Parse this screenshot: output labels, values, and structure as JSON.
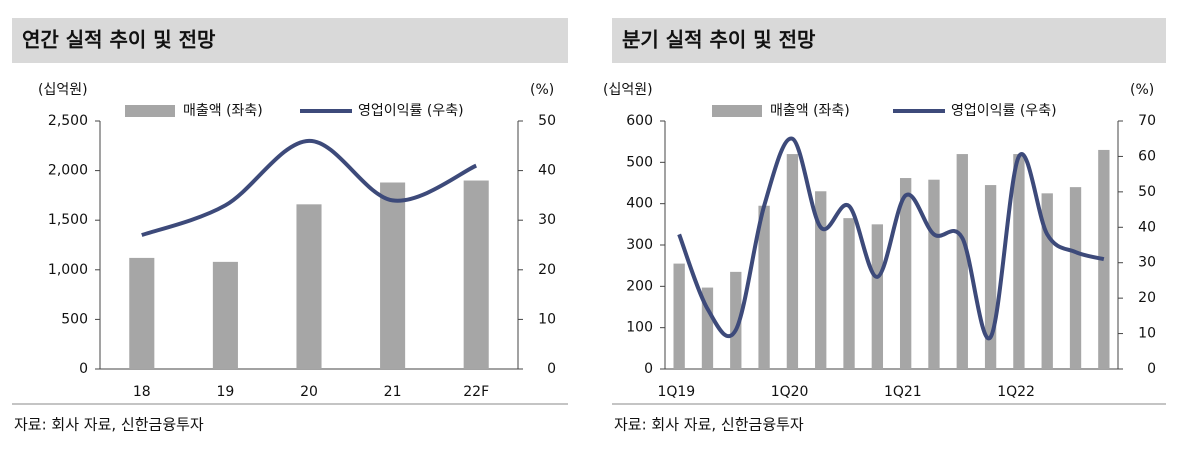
{
  "chart_data": [
    {
      "type": "bar-line",
      "title": "연간 실적 추이 및 전망",
      "y_label": "(십억원)",
      "y2_label": "(%)",
      "source": "자료: 회사 자료, 신한금융투자",
      "categories": [
        "18",
        "19",
        "20",
        "21",
        "22F"
      ],
      "series": [
        {
          "name": "매출액 (좌축)",
          "type": "bar",
          "color": "#a6a6a6",
          "values": [
            1120,
            1080,
            1660,
            1880,
            1900
          ]
        },
        {
          "name": "영업이익률 (우축)",
          "type": "line",
          "axis": "y2",
          "color": "#3d4a7a",
          "values": [
            27,
            33,
            46,
            34,
            41
          ]
        }
      ],
      "ylim": [
        0,
        2500
      ],
      "yticks": [
        0,
        500,
        {
          "value": 1000,
          "label": "1,000"
        },
        {
          "value": 1500,
          "label": "1,500"
        },
        {
          "value": 2000,
          "label": "2,000"
        },
        {
          "value": 2500,
          "label": "2,500"
        }
      ],
      "y2lim": [
        0,
        50
      ],
      "y2ticks": [
        0,
        10,
        20,
        30,
        40,
        50
      ]
    },
    {
      "type": "bar-line",
      "title": "분기 실적 추이 및 전망",
      "y_label": "(십억원)",
      "y2_label": "(%)",
      "source": "자료: 회사 자료, 신한금융투자",
      "categories": [
        "1Q19",
        null,
        null,
        null,
        "1Q20",
        null,
        null,
        null,
        "1Q21",
        null,
        null,
        null,
        "1Q22",
        null,
        null,
        null
      ],
      "series": [
        {
          "name": "매출액 (좌축)",
          "type": "bar",
          "color": "#a6a6a6",
          "values": [
            255,
            197,
            235,
            395,
            520,
            430,
            365,
            350,
            462,
            458,
            520,
            445,
            520,
            425,
            440,
            530
          ]
        },
        {
          "name": "영업이익률 (우축)",
          "type": "line",
          "axis": "y2",
          "color": "#3d4a7a",
          "values": [
            38,
            17,
            11,
            46,
            65,
            40,
            46,
            26,
            49,
            38,
            37,
            9,
            60,
            38,
            33,
            31
          ]
        }
      ],
      "ylim": [
        0,
        600
      ],
      "yticks": [
        0,
        100,
        200,
        300,
        400,
        500,
        600
      ],
      "y2lim": [
        0,
        70
      ],
      "y2ticks": [
        0,
        10,
        20,
        30,
        40,
        50,
        60,
        70
      ]
    }
  ]
}
